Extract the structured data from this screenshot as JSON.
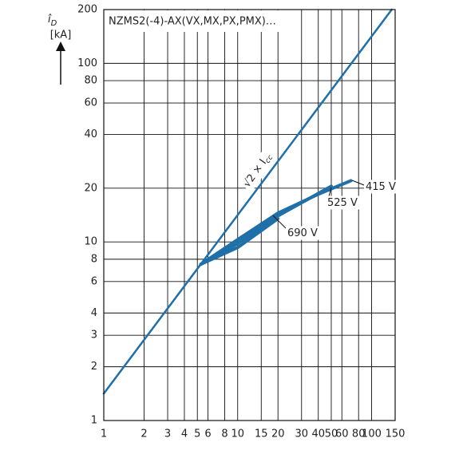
{
  "chart_data": {
    "type": "line",
    "title": "NZMS2(-4)-AX(VX,MX,PX,PMX)…",
    "ylabel": "î",
    "ylabel_sub": "D",
    "yunit": "[kA]",
    "xlog": true,
    "ylog": true,
    "grid": true,
    "xlim": [
      1,
      150
    ],
    "ylim": [
      1,
      200
    ],
    "xticks": [
      1,
      2,
      3,
      4,
      5,
      6,
      8,
      10,
      15,
      20,
      30,
      40,
      50,
      60,
      80,
      100,
      150
    ],
    "yticks": [
      1,
      2,
      3,
      4,
      6,
      8,
      10,
      20,
      40,
      60,
      80,
      100,
      200
    ],
    "series": [
      {
        "name": "√2 × I",
        "name_sub": "cc",
        "color": "#1f6fa8",
        "x": [
          1,
          141.4
        ],
        "values": [
          1.414,
          200
        ]
      },
      {
        "name": "415 V",
        "color": "#1f6fa8",
        "x": [
          5.3,
          10,
          20,
          40,
          70
        ],
        "values": [
          7.5,
          10.3,
          14.5,
          18.5,
          22
        ]
      },
      {
        "name": "525 V",
        "color": "#1f6fa8",
        "x": [
          5.3,
          10,
          20,
          50
        ],
        "values": [
          7.5,
          9.8,
          14,
          20.5
        ]
      },
      {
        "name": "690 V",
        "color": "#1f6fa8",
        "x": [
          5.3,
          10,
          20
        ],
        "values": [
          7.5,
          9.3,
          13.5
        ]
      }
    ]
  }
}
